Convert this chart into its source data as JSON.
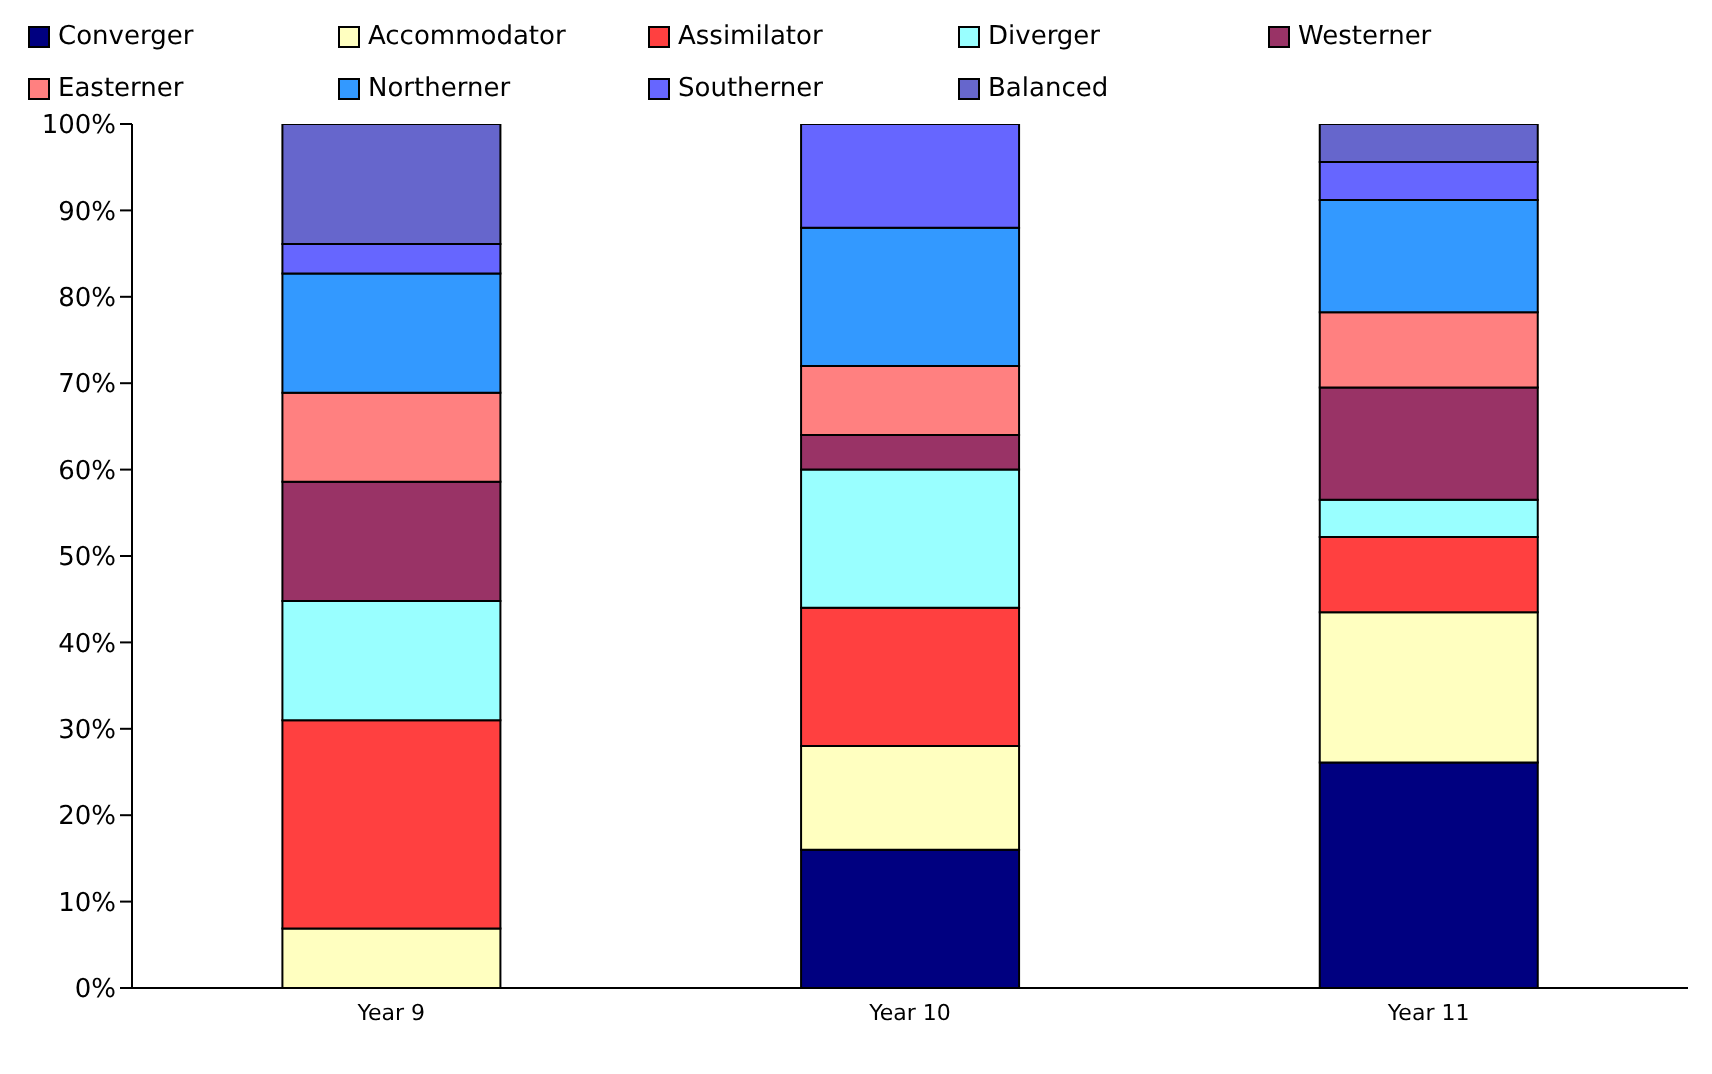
{
  "chart_data": {
    "type": "bar",
    "stacked": true,
    "legend": "top",
    "categories": [
      "Year 9",
      "Year 10",
      "Year 11"
    ],
    "series": [
      {
        "name": "Converger",
        "color": "#000080",
        "values": [
          0,
          16,
          26.1
        ]
      },
      {
        "name": "Accommodator",
        "color": "#ffffc0",
        "values": [
          6.9,
          12,
          17.4
        ]
      },
      {
        "name": "Assimilator",
        "color": "#ff4040",
        "values": [
          24.1,
          16,
          8.7
        ]
      },
      {
        "name": "Diverger",
        "color": "#99ffff",
        "values": [
          13.8,
          16,
          4.3
        ]
      },
      {
        "name": "Westerner",
        "color": "#993366",
        "values": [
          13.8,
          4,
          13
        ]
      },
      {
        "name": "Easterner",
        "color": "#ff8080",
        "values": [
          10.3,
          8,
          8.7
        ]
      },
      {
        "name": "Northerner",
        "color": "#3399ff",
        "values": [
          13.8,
          16,
          13
        ]
      },
      {
        "name": "Southerner",
        "color": "#6666ff",
        "values": [
          3.4,
          12,
          4.4
        ]
      },
      {
        "name": "Balanced",
        "color": "#6666cc",
        "values": [
          13.9,
          0,
          4.4
        ]
      }
    ],
    "ylim": [
      0,
      100
    ],
    "yticks": [
      {
        "value": 0,
        "label": "0%"
      },
      {
        "value": 10,
        "label": "10%"
      },
      {
        "value": 20,
        "label": "20%"
      },
      {
        "value": 30,
        "label": "30%"
      },
      {
        "value": 40,
        "label": "40%"
      },
      {
        "value": 50,
        "label": "50%"
      },
      {
        "value": 60,
        "label": "60%"
      },
      {
        "value": 70,
        "label": "70%"
      },
      {
        "value": 80,
        "label": "80%"
      },
      {
        "value": 90,
        "label": "90%"
      },
      {
        "value": 100,
        "label": "100%"
      }
    ]
  }
}
